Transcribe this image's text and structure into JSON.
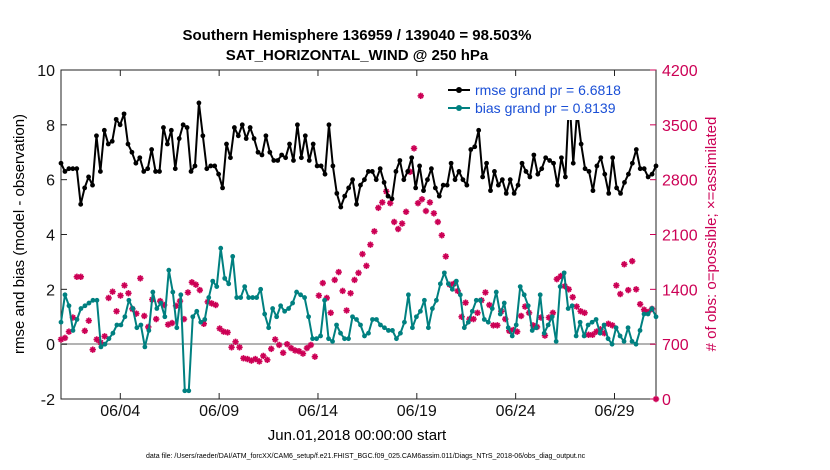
{
  "chart_data": {
    "type": "line",
    "title": "Southern Hemisphere 136959 / 139040 = 98.503%",
    "subtitle": "SAT_HORIZONTAL_WIND @ 250 hPa",
    "xlabel": "Jun.01,2018 00:00:00 start",
    "ylabel_left": "rmse and bias (model - observation)",
    "ylabel_right": "# of obs: o=possible; ×=assimilated",
    "footer": "data file: /Users/raeder/DAI/ATM_forcXX/CAM6_setup/f.e21.FHIST_BGC.f09_025.CAM6assim.011/Diags_NTrS_2018-06/obs_diag_output.nc",
    "x_tick_labels": [
      "06/04",
      "06/09",
      "06/14",
      "06/19",
      "06/24",
      "06/29"
    ],
    "x_tick_days": [
      4,
      9,
      14,
      19,
      24,
      29
    ],
    "xlim_days": [
      1,
      31.1
    ],
    "ylim_left": [
      -2,
      10
    ],
    "y_ticks_left": [
      "-2",
      "0",
      "2",
      "4",
      "6",
      "8",
      "10"
    ],
    "ylim_right": [
      0,
      4200
    ],
    "y_ticks_right": [
      "0",
      "700",
      "1400",
      "2100",
      "2800",
      "3500",
      "4200"
    ],
    "colors": {
      "rmse": "#000000",
      "bias": "#008080",
      "obs": "#cc0055",
      "zero_line": "#b0b0b0"
    },
    "series": [
      {
        "name": "rmse grand pr = 6.6818",
        "axis": "left",
        "values": [
          6.6,
          6.3,
          6.4,
          6.4,
          6.4,
          5.1,
          5.7,
          6.1,
          5.8,
          7.6,
          6.3,
          7.8,
          7.3,
          7.4,
          8.2,
          8.0,
          8.4,
          7.3,
          7.0,
          6.6,
          6.8,
          6.3,
          6.4,
          7.1,
          6.3,
          6.3,
          7.9,
          7.3,
          7.8,
          6.4,
          7.5,
          8.0,
          7.9,
          6.3,
          6.5,
          8.8,
          7.6,
          6.4,
          6.5,
          6.5,
          6.2,
          5.7,
          7.3,
          6.8,
          7.9,
          7.6,
          8.0,
          7.5,
          7.9,
          7.5,
          7.0,
          6.9,
          7.6,
          7.0,
          6.7,
          6.7,
          6.9,
          6.8,
          7.3,
          6.7,
          8.0,
          6.8,
          7.6,
          6.7,
          7.3,
          6.5,
          6.5,
          6.2,
          8.0,
          6.5,
          5.5,
          5.0,
          5.4,
          5.7,
          6.0,
          5.1,
          5.8,
          6.0,
          6.3,
          6.3,
          6.0,
          6.4,
          5.9,
          5.4,
          5.3,
          6.3,
          6.7,
          6.0,
          6.3,
          6.8,
          5.7,
          6.5,
          5.6,
          6.0,
          6.4,
          5.7,
          5.4,
          5.8,
          5.8,
          6.6,
          6.0,
          6.3,
          6.0,
          5.8,
          7.1,
          7.2,
          7.8,
          6.1,
          6.6,
          5.6,
          6.3,
          5.8,
          6.0,
          5.5,
          6.0,
          5.5,
          5.8,
          6.6,
          6.3,
          6.1,
          6.9,
          6.2,
          6.4,
          6.8,
          6.7,
          6.6,
          5.8,
          6.8,
          6.1,
          9.1,
          6.6,
          8.5,
          7.3,
          6.4,
          6.3,
          5.6,
          6.5,
          6.8,
          6.2,
          5.5,
          6.8,
          5.7,
          5.5,
          5.9,
          6.2,
          6.6,
          7.1,
          6.4,
          6.4,
          6.1,
          6.2,
          6.5
        ],
        "values_note": "two-per-day approximation; last index aligned to day 31.1"
      },
      {
        "name": "bias grand pr = 0.8139",
        "axis": "left",
        "values": [
          0.8,
          1.8,
          1.4,
          0.5,
          0.9,
          1.3,
          1.4,
          1.5,
          1.6,
          1.6,
          -0.1,
          0.0,
          0.2,
          0.4,
          0.7,
          0.7,
          1.0,
          1.6,
          1.3,
          0.6,
          0.7,
          -0.1,
          0.5,
          1.9,
          1.3,
          1.5,
          1.0,
          2.7,
          1.9,
          0.6,
          1.8,
          -1.7,
          -1.7,
          1.0,
          1.2,
          0.8,
          0.9,
          1.7,
          2.3,
          2.1,
          3.5,
          2.4,
          2.2,
          3.2,
          1.7,
          1.7,
          2.1,
          1.7,
          1.7,
          1.7,
          2.0,
          1.1,
          0.6,
          1.3,
          1.0,
          1.4,
          1.2,
          1.3,
          1.5,
          1.9,
          1.8,
          1.7,
          1.0,
          0.2,
          0.2,
          0.3,
          1.6,
          0.2,
          0.1,
          0.7,
          0.4,
          0.2,
          0.2,
          1.0,
          0.9,
          0.7,
          0.3,
          0.4,
          0.9,
          0.9,
          0.7,
          0.6,
          0.5,
          0.5,
          0.2,
          0.4,
          0.8,
          1.8,
          0.6,
          1.0,
          1.2,
          1.6,
          0.6,
          1.3,
          1.6,
          2.2,
          2.6,
          2.2,
          2.0,
          2.3,
          1.8,
          0.6,
          0.8,
          1.2,
          1.6,
          1.6,
          0.9,
          0.8,
          1.3,
          1.9,
          1.1,
          1.5,
          0.6,
          0.3,
          0.7,
          2.1,
          1.8,
          1.4,
          0.5,
          0.6,
          1.8,
          0.4,
          0.7,
          1.0,
          0.1,
          2.1,
          2.6,
          1.3,
          1.4,
          0.3,
          0.8,
          0.3,
          0.7,
          0.8,
          0.9,
          0.4,
          0.7,
          0.2,
          0.0,
          0.6,
          0.3,
          0.1,
          0.6,
          0.1,
          0.0,
          0.5,
          1.1,
          1.1,
          1.3,
          1.0
        ],
        "values_note": "two-per-day approximation"
      },
      {
        "name": "# of obs (possible ≈ assimilated)",
        "axis": "right",
        "values": [
          760,
          780,
          860,
          1040,
          1560,
          1560,
          870,
          1000,
          630,
          760,
          720,
          800,
          1290,
          1370,
          1120,
          1320,
          1450,
          1350,
          1150,
          1090,
          1540,
          1060,
          920,
          1270,
          1020,
          1250,
          1200,
          950,
          970,
          1190,
          1250,
          1020,
          1360,
          1490,
          1460,
          1390,
          960,
          1240,
          1220,
          1200,
          900,
          860,
          850,
          660,
          730,
          660,
          520,
          510,
          490,
          510,
          480,
          550,
          500,
          640,
          760,
          690,
          590,
          700,
          650,
          620,
          610,
          580,
          650,
          690,
          540,
          1320,
          1480,
          1290,
          1100,
          1520,
          1620,
          1380,
          1130,
          1350,
          1520,
          1610,
          1850,
          1700,
          1970,
          2140,
          2440,
          2510,
          2650,
          2500,
          2260,
          2170,
          2240,
          2390,
          2900,
          3200,
          2500,
          2550,
          2400,
          2510,
          2370,
          2260,
          2090,
          1820,
          1460,
          1470,
          1380,
          1050,
          1230,
          1020,
          1020,
          1100,
          1260,
          1360,
          1200,
          940,
          940,
          1120,
          1020,
          870,
          880,
          860,
          1060,
          1180,
          1100,
          940,
          920,
          1040,
          810,
          1040,
          1100,
          1530,
          1570,
          1440,
          1400,
          1300,
          1180,
          1120,
          1100,
          820,
          820,
          860,
          890,
          840,
          960,
          940,
          1450,
          1340,
          1720,
          1390,
          1760,
          1400,
          1210,
          1140,
          1110,
          1150,
          0
        ],
        "values_note": "approximate; one outlier 3870 near day 19.2; last point 0 at day 31.1"
      }
    ],
    "legend": [
      "rmse grand pr = 6.6818",
      "bias grand pr = 0.8139"
    ]
  }
}
